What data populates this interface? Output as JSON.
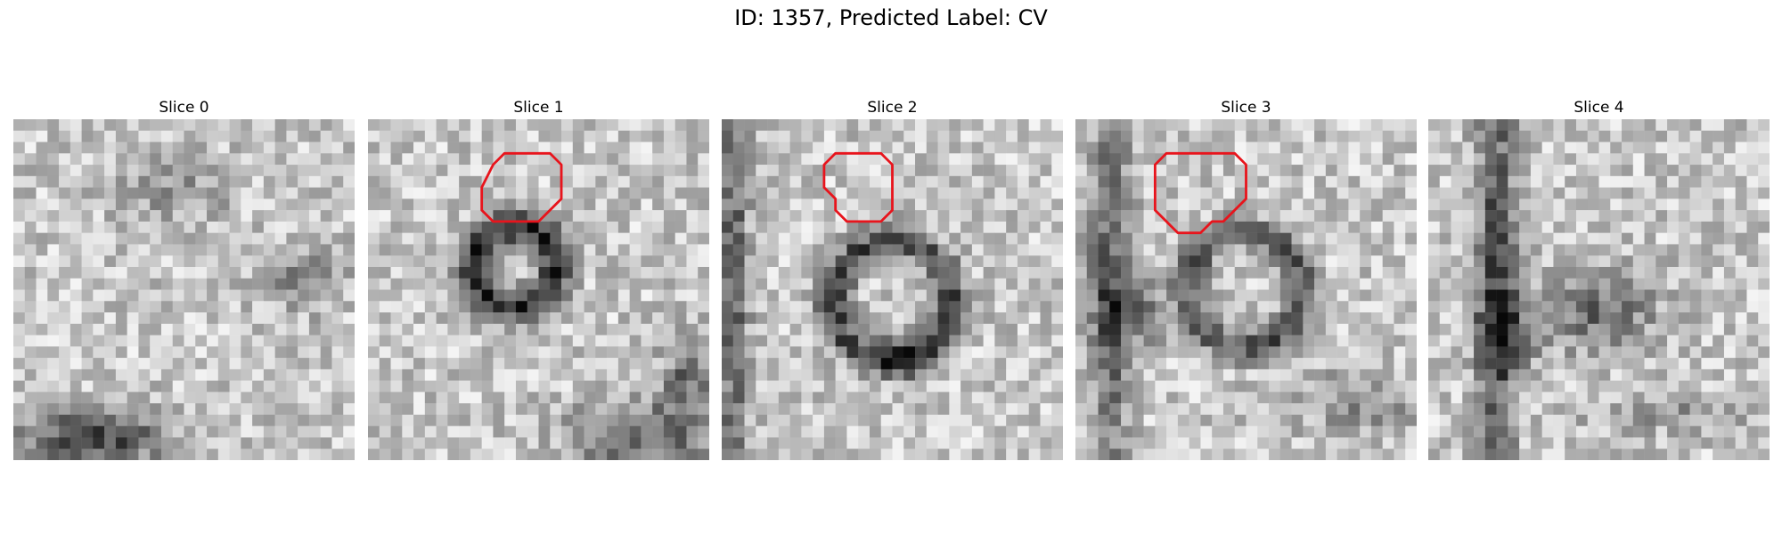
{
  "figure": {
    "title": "ID: 1357, Predicted Label: CV"
  },
  "slices": [
    {
      "title": "Slice 0",
      "segmentation": null,
      "description": "noisy grayscale EM patch, dark region bottom-left"
    },
    {
      "title": "Slice 1",
      "segmentation": {
        "color": "#e8141c",
        "outline": [
          [
            13,
            3
          ],
          [
            16,
            3
          ],
          [
            17,
            4
          ],
          [
            17,
            7
          ],
          [
            15,
            9
          ],
          [
            13,
            9
          ],
          [
            11,
            9
          ],
          [
            10,
            8
          ],
          [
            10,
            6
          ],
          [
            11,
            4
          ],
          [
            12,
            3
          ]
        ]
      },
      "description": "dark ring vesicle in center, dark curve bottom-right"
    },
    {
      "title": "Slice 2",
      "segmentation": {
        "color": "#e8141c",
        "outline": [
          [
            12,
            3
          ],
          [
            14,
            3
          ],
          [
            15,
            4
          ],
          [
            15,
            8
          ],
          [
            14,
            9
          ],
          [
            11,
            9
          ],
          [
            10,
            8
          ],
          [
            10,
            7
          ],
          [
            9,
            6
          ],
          [
            9,
            4
          ],
          [
            10,
            3
          ]
        ]
      },
      "description": "large ring vesicle centered, vertical dark band at left"
    },
    {
      "title": "Slice 3",
      "segmentation": {
        "color": "#e8141c",
        "outline": [
          [
            11,
            3
          ],
          [
            14,
            3
          ],
          [
            15,
            4
          ],
          [
            15,
            7
          ],
          [
            14,
            8
          ],
          [
            13,
            9
          ],
          [
            12,
            9
          ],
          [
            11,
            10
          ],
          [
            9,
            10
          ],
          [
            8,
            9
          ],
          [
            7,
            8
          ],
          [
            7,
            4
          ],
          [
            8,
            3
          ]
        ]
      },
      "description": "ring vesicle, dark band at left"
    },
    {
      "title": "Slice 4",
      "segmentation": null,
      "description": "vertical dark band left, blurred dark blob center-right"
    }
  ]
}
